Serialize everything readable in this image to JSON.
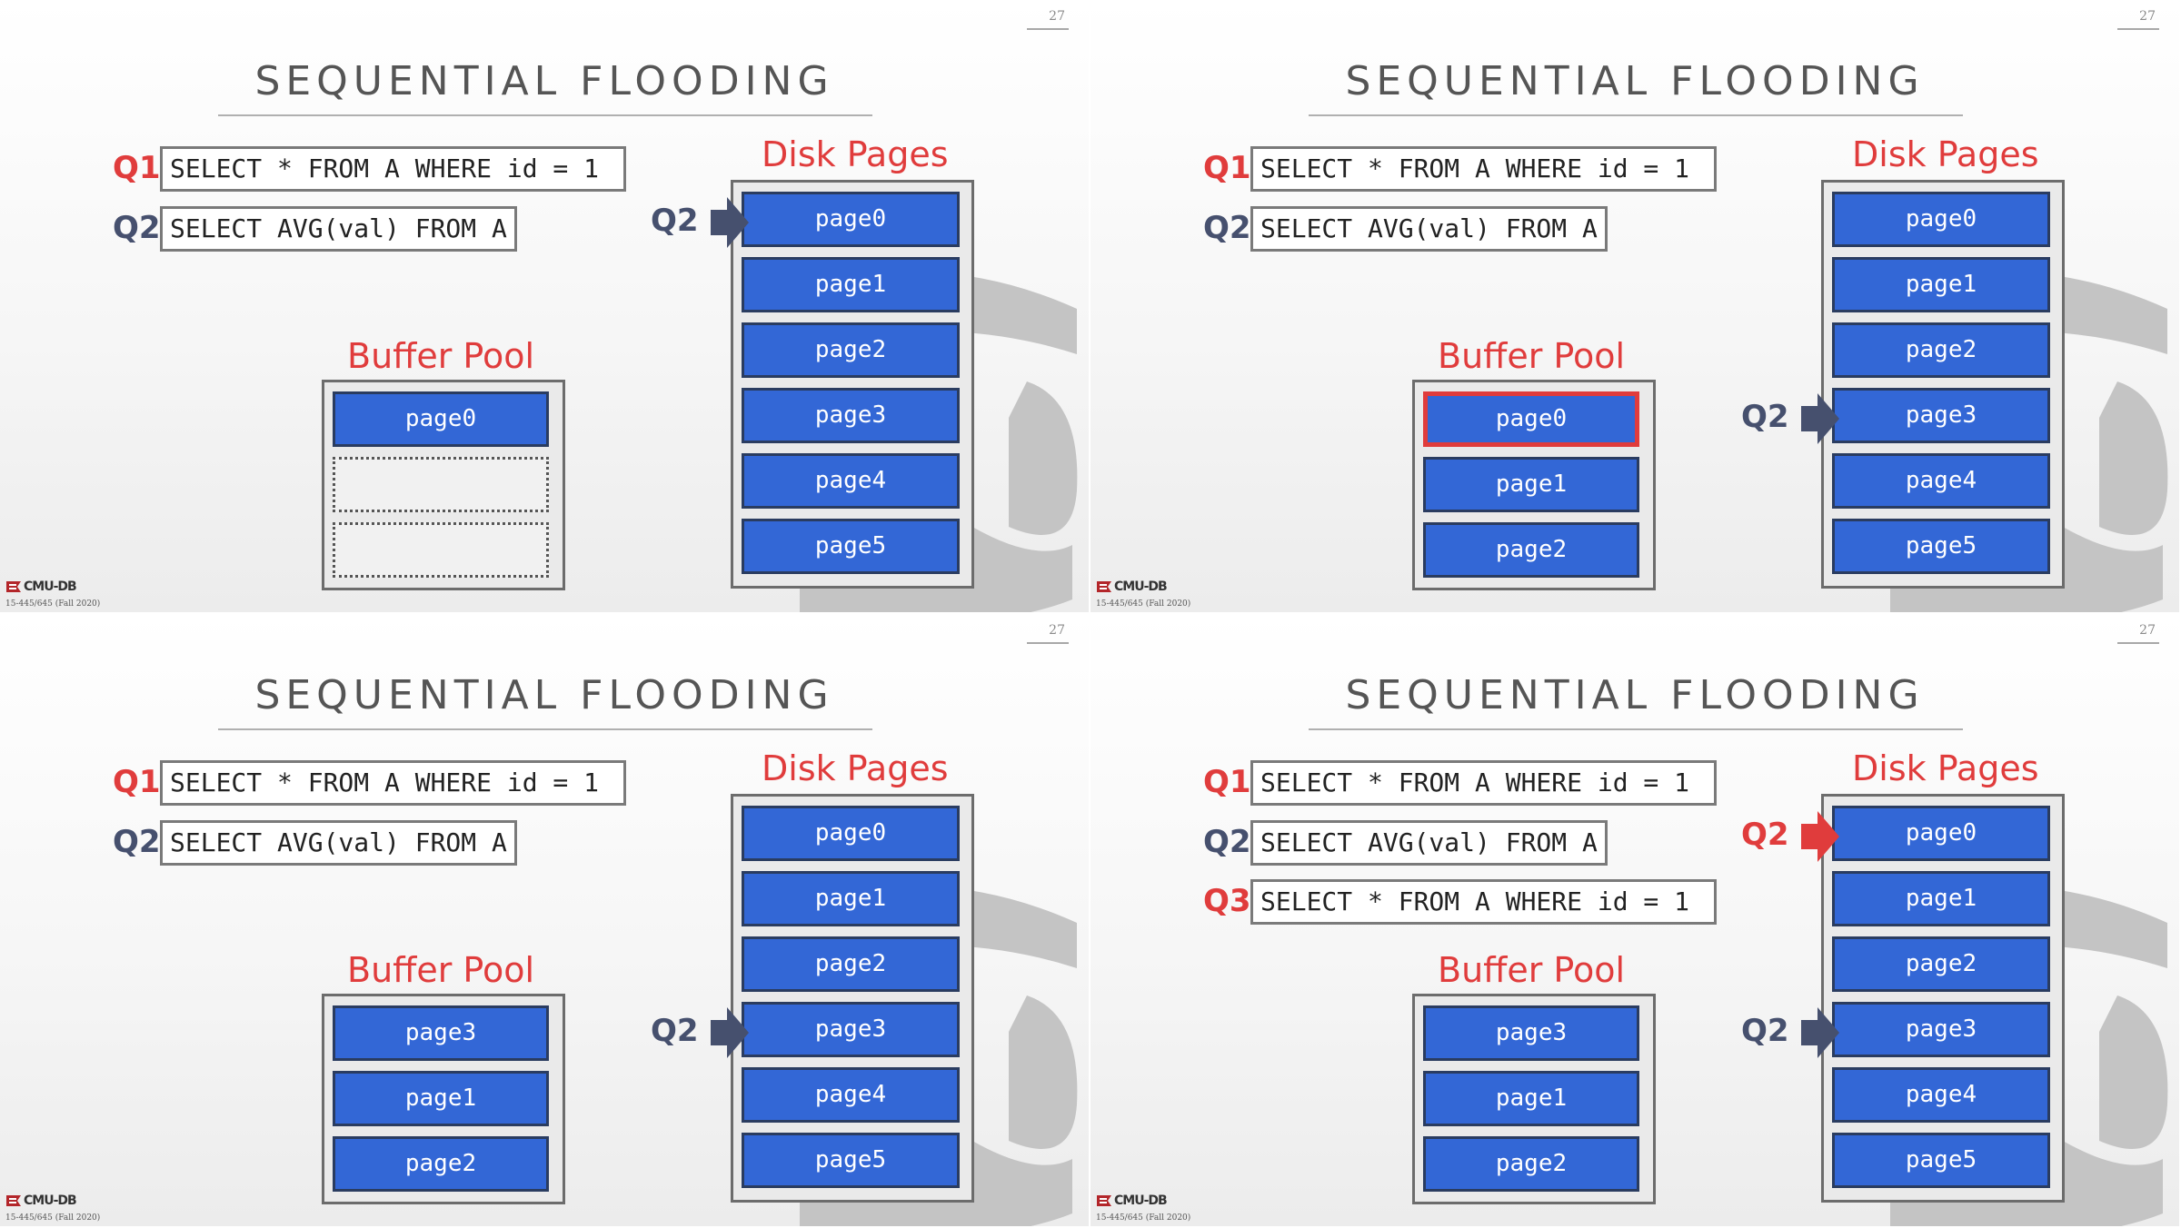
{
  "page_number": "27",
  "logo_text": "CMU-DB",
  "course_text": "15-445/645 (Fall 2020)",
  "colors": {
    "red": "#e03c3c",
    "navy": "#46506e",
    "blue": "#3367d6",
    "border": "#2a3c60"
  },
  "slides": [
    {
      "title": "SEQUENTIAL FLOODING",
      "queries": [
        {
          "label": "Q1",
          "color": "red",
          "sql": "SELECT * FROM A WHERE id = 1"
        },
        {
          "label": "Q2",
          "color": "navy",
          "sql": "SELECT AVG(val) FROM A"
        }
      ],
      "buffer_pool": {
        "label": "Buffer Pool",
        "slots": [
          "page0",
          "",
          ""
        ],
        "highlight": -1
      },
      "disk": {
        "label": "Disk Pages",
        "pages": [
          "page0",
          "page1",
          "page2",
          "page3",
          "page4",
          "page5"
        ]
      },
      "pointers": [
        {
          "label": "Q2",
          "color": "navy",
          "page": 0
        }
      ]
    },
    {
      "title": "SEQUENTIAL FLOODING",
      "queries": [
        {
          "label": "Q1",
          "color": "red",
          "sql": "SELECT * FROM A WHERE id = 1"
        },
        {
          "label": "Q2",
          "color": "navy",
          "sql": "SELECT AVG(val) FROM A"
        }
      ],
      "buffer_pool": {
        "label": "Buffer Pool",
        "slots": [
          "page0",
          "page1",
          "page2"
        ],
        "highlight": 0
      },
      "disk": {
        "label": "Disk Pages",
        "pages": [
          "page0",
          "page1",
          "page2",
          "page3",
          "page4",
          "page5"
        ]
      },
      "pointers": [
        {
          "label": "Q2",
          "color": "navy",
          "page": 3
        }
      ]
    },
    {
      "title": "SEQUENTIAL FLOODING",
      "queries": [
        {
          "label": "Q1",
          "color": "red",
          "sql": "SELECT * FROM A WHERE id = 1"
        },
        {
          "label": "Q2",
          "color": "navy",
          "sql": "SELECT AVG(val) FROM A"
        }
      ],
      "buffer_pool": {
        "label": "Buffer Pool",
        "slots": [
          "page3",
          "page1",
          "page2"
        ],
        "highlight": -1
      },
      "disk": {
        "label": "Disk Pages",
        "pages": [
          "page0",
          "page1",
          "page2",
          "page3",
          "page4",
          "page5"
        ]
      },
      "pointers": [
        {
          "label": "Q2",
          "color": "navy",
          "page": 3
        }
      ]
    },
    {
      "title": "SEQUENTIAL FLOODING",
      "queries": [
        {
          "label": "Q1",
          "color": "red",
          "sql": "SELECT * FROM A WHERE id = 1"
        },
        {
          "label": "Q2",
          "color": "navy",
          "sql": "SELECT AVG(val) FROM A"
        },
        {
          "label": "Q3",
          "color": "red",
          "sql": "SELECT * FROM A WHERE id = 1"
        }
      ],
      "buffer_pool": {
        "label": "Buffer Pool",
        "slots": [
          "page3",
          "page1",
          "page2"
        ],
        "highlight": -1
      },
      "disk": {
        "label": "Disk Pages",
        "pages": [
          "page0",
          "page1",
          "page2",
          "page3",
          "page4",
          "page5"
        ]
      },
      "pointers": [
        {
          "label": "Q2",
          "color": "red",
          "page": 0
        },
        {
          "label": "Q2",
          "color": "navy",
          "page": 3
        }
      ]
    }
  ]
}
